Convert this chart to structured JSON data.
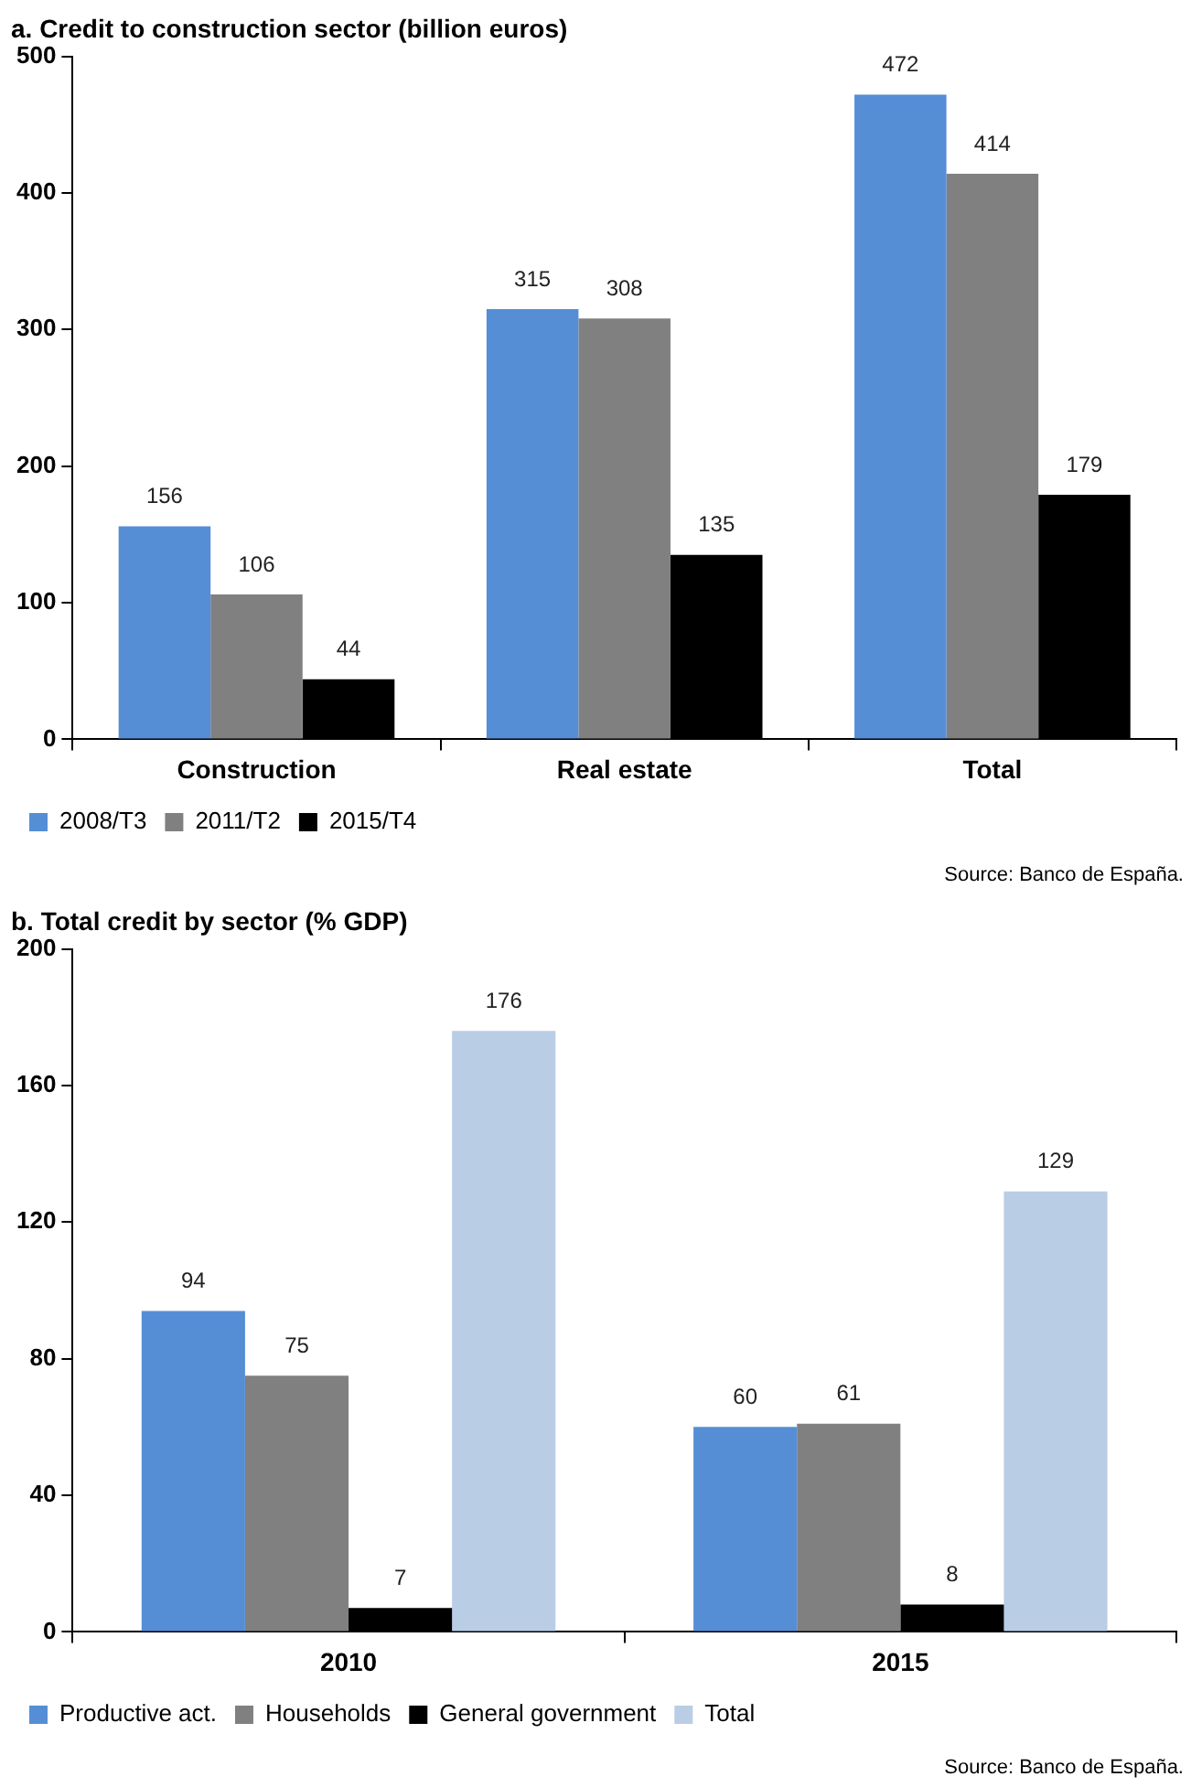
{
  "chart_data": [
    {
      "type": "bar",
      "title": "a. Credit to construction sector (billion euros)",
      "categories": [
        "Construction",
        "Real estate",
        "Total"
      ],
      "series": [
        {
          "name": "2008/T3",
          "color": "#558ed5",
          "values": [
            156,
            315,
            472
          ]
        },
        {
          "name": "2011/T2",
          "color": "#808080",
          "values": [
            106,
            308,
            414
          ]
        },
        {
          "name": "2015/T4",
          "color": "#000000",
          "values": [
            44,
            135,
            179
          ]
        }
      ],
      "ylim": [
        0,
        500
      ],
      "yticks": [
        0,
        100,
        200,
        300,
        400,
        500
      ],
      "grid": false,
      "legend": "bottom",
      "data_labels": true,
      "annotations": [
        "Source: Banco de España."
      ]
    },
    {
      "type": "bar",
      "title": "b. Total credit by sector (% GDP)",
      "categories": [
        "2010",
        "2015"
      ],
      "series": [
        {
          "name": "Productive act.",
          "color": "#558ed5",
          "values": [
            94,
            60
          ]
        },
        {
          "name": "Households",
          "color": "#808080",
          "values": [
            75,
            61
          ]
        },
        {
          "name": "General government",
          "color": "#000000",
          "values": [
            7,
            8
          ]
        },
        {
          "name": "Total",
          "color": "#b9cde5",
          "values": [
            176,
            129
          ]
        }
      ],
      "ylim": [
        0,
        200
      ],
      "yticks": [
        0,
        40,
        80,
        120,
        160,
        200
      ],
      "grid": false,
      "legend": "bottom",
      "data_labels": true,
      "annotations": [
        "Source: Banco de España."
      ]
    }
  ]
}
